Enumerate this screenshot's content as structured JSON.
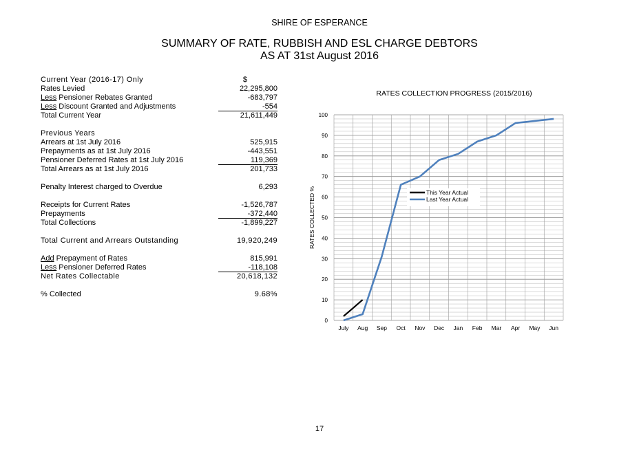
{
  "header": {
    "organisation": "SHIRE OF ESPERANCE",
    "title_line1": "SUMMARY OF RATE, RUBBISH AND ESL CHARGE DEBTORS",
    "title_line2": "AS AT 31st August 2016"
  },
  "current_year": {
    "heading": "Current Year (2016-17) Only",
    "currency": "$",
    "rates_levied_label": "Rates Levied",
    "rates_levied_value": "22,295,800",
    "pensioner_rebates_prefix": "Less",
    "pensioner_rebates_label": " Pensioner Rebates Granted",
    "pensioner_rebates_value": "-683,797",
    "discount_prefix": "Less",
    "discount_label": " Discount Granted and Adjustments",
    "discount_value": "-554",
    "total_label": "Total Current Year",
    "total_value": "21,611,449"
  },
  "previous_years": {
    "heading": "Previous Years",
    "arrears_label": "Arrears at 1st July 2016",
    "arrears_value": "525,915",
    "prepayments_label": "Prepayments as at 1st July 2016",
    "prepayments_value": "-443,551",
    "deferred_label": "Pensioner Deferred Rates at 1st July 2016",
    "deferred_value": "119,369",
    "total_label": "Total Arrears as at 1st July 2016",
    "total_value": "201,733"
  },
  "penalty": {
    "label": "Penalty Interest charged to Overdue",
    "value": "6,293"
  },
  "collections": {
    "receipts_label": "Receipts for Current Rates",
    "receipts_value": "-1,526,787",
    "prepayments_label": "Prepayments",
    "prepayments_value": "-372,440",
    "total_label": "Total Collections",
    "total_value": "-1,899,227"
  },
  "outstanding": {
    "label": "Total Current and Arrears Outstanding",
    "value": "19,920,249"
  },
  "net": {
    "add_prefix": "Add",
    "add_label": " Prepayment of Rates",
    "add_value": "815,991",
    "less_prefix": "Less",
    "less_label": " Pensioner Deferred Rates",
    "less_value": "-118,108",
    "label": "Net Rates Collectable",
    "value": "20,618,132"
  },
  "collected": {
    "label": "% Collected",
    "value": "9.68%"
  },
  "chart_data": {
    "type": "line",
    "title": "RATES COLLECTION PROGRESS (2015/2016)",
    "xlabel": "",
    "ylabel": "RATES COLLECTED %",
    "categories": [
      "July",
      "Aug",
      "Sep",
      "Oct",
      "Nov",
      "Dec",
      "Jan",
      "Feb",
      "Mar",
      "Apr",
      "May",
      "Jun"
    ],
    "ylim": [
      0,
      100
    ],
    "yticks": [
      "0",
      "10",
      "20",
      "30",
      "40",
      "50",
      "60",
      "70",
      "80",
      "90",
      "100"
    ],
    "grid": true,
    "legend_position": "right",
    "series": [
      {
        "name": "This Year Actual",
        "color": "#000000",
        "values": [
          2,
          10,
          null,
          null,
          null,
          null,
          null,
          null,
          null,
          null,
          null,
          null
        ]
      },
      {
        "name": "Last Year Actual",
        "color": "#4f81bd",
        "values": [
          0,
          3,
          31,
          66,
          70,
          78,
          81,
          87,
          90,
          96,
          97,
          98
        ]
      }
    ]
  },
  "footer": {
    "page_number": "17"
  }
}
